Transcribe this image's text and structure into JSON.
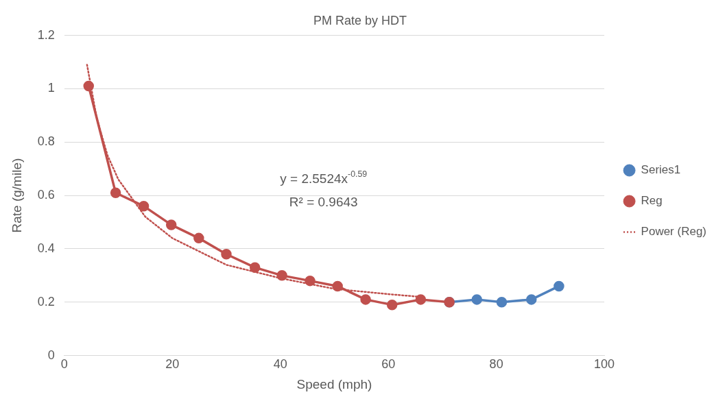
{
  "chart_data": {
    "type": "line",
    "title": "PM Rate by HDT",
    "xlabel": "Speed (mph)",
    "ylabel": "Rate (g/mile)",
    "xlim": [
      0,
      100
    ],
    "xticks": [
      0,
      20,
      40,
      60,
      80,
      100
    ],
    "ylim": [
      0,
      1.2
    ],
    "yticks": [
      0,
      0.2,
      0.4,
      0.6,
      0.8,
      1,
      1.2
    ],
    "grid": "y",
    "legend": "right",
    "marker": "circle",
    "series": [
      {
        "name": "Series1",
        "color": "#4f81bd",
        "x": [
          71.3,
          76.4,
          81,
          86.5,
          91.6
        ],
        "values": [
          0.2,
          0.21,
          0.2,
          0.21,
          0.26
        ]
      },
      {
        "name": "Reg",
        "color": "#c0504d",
        "x": [
          4.5,
          9.5,
          14.7,
          19.8,
          24.9,
          30,
          35.3,
          40.3,
          45.5,
          50.6,
          55.8,
          60.7,
          66,
          71.3
        ],
        "values": [
          1.01,
          0.61,
          0.56,
          0.49,
          0.44,
          0.38,
          0.33,
          0.3,
          0.28,
          0.26,
          0.21,
          0.19,
          0.21,
          0.2
        ]
      },
      {
        "name": "Power (Reg)",
        "color": "#c0504d",
        "type": "line",
        "marker": "none",
        "line_style": "dotted",
        "x": [
          4.2,
          6,
          8,
          10,
          15,
          20,
          30,
          40,
          50,
          60,
          66
        ],
        "values": [
          1.09,
          0.89,
          0.75,
          0.66,
          0.52,
          0.44,
          0.34,
          0.29,
          0.25,
          0.23,
          0.22
        ]
      }
    ],
    "annotations": [
      "y = 2.5524x$^{-0.59}$",
      "R² = 0.9643"
    ]
  }
}
